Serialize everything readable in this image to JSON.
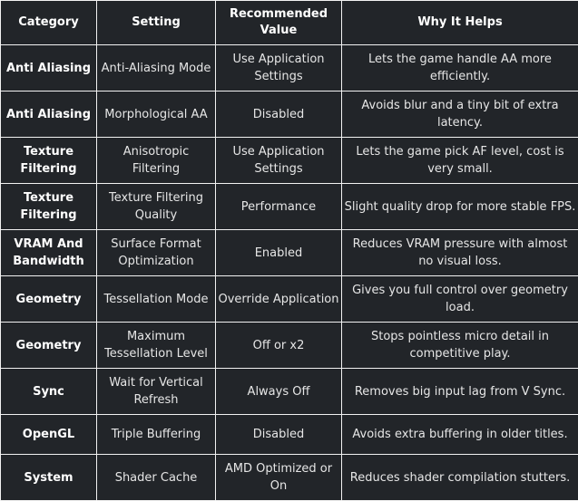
{
  "table": {
    "headers": [
      "Category",
      "Setting",
      "Recommended Value",
      "Why It Helps"
    ],
    "rows": [
      {
        "category": "Anti Aliasing",
        "setting": "Anti-Aliasing Mode",
        "value": "Use Application Settings",
        "why": "Lets the game handle AA more efficiently."
      },
      {
        "category": "Anti Aliasing",
        "setting": "Morphological AA",
        "value": "Disabled",
        "why": "Avoids blur and a tiny bit of extra latency."
      },
      {
        "category": "Texture Filtering",
        "setting": "Anisotropic Filtering",
        "value": "Use Application Settings",
        "why": "Lets the game pick AF level, cost is very small."
      },
      {
        "category": "Texture Filtering",
        "setting": "Texture Filtering Quality",
        "value": "Performance",
        "why": "Slight quality drop for more stable FPS."
      },
      {
        "category": "VRAM And Bandwidth",
        "setting": "Surface Format Optimization",
        "value": "Enabled",
        "why": "Reduces VRAM pressure with almost no visual loss."
      },
      {
        "category": "Geometry",
        "setting": "Tessellation Mode",
        "value": "Override Application",
        "why": "Gives you full control over geometry load."
      },
      {
        "category": "Geometry",
        "setting": "Maximum Tessellation Level",
        "value": "Off or x2",
        "why": "Stops pointless micro detail in competitive play."
      },
      {
        "category": "Sync",
        "setting": "Wait for Vertical Refresh",
        "value": "Always Off",
        "why": "Removes big input lag from V Sync."
      },
      {
        "category": "OpenGL",
        "setting": "Triple Buffering",
        "value": "Disabled",
        "why": "Avoids extra buffering in older titles."
      },
      {
        "category": "System",
        "setting": "Shader Cache",
        "value": "AMD Optimized or On",
        "why": "Reduces shader compilation stutters."
      }
    ]
  }
}
